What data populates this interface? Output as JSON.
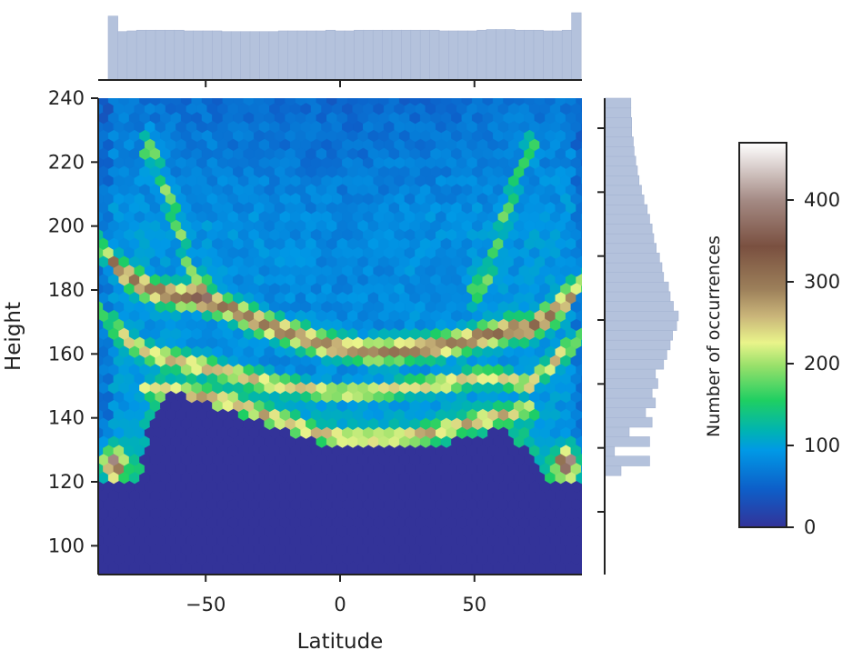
{
  "chart_data": {
    "type": "heatmap",
    "subtype": "hexbin joint plot with marginal histograms",
    "xlabel": "Latitude",
    "ylabel": "Height",
    "xlim": [
      -90,
      90
    ],
    "ylim": [
      91,
      240
    ],
    "x_ticks": [
      -50,
      0,
      50
    ],
    "x_tick_labels": [
      "−50",
      "0",
      "50"
    ],
    "y_ticks": [
      100,
      120,
      140,
      160,
      180,
      200,
      220,
      240
    ],
    "y_tick_labels": [
      "100",
      "120",
      "140",
      "160",
      "180",
      "200",
      "220",
      "240"
    ],
    "colorbar": {
      "label": "Number of occurrences",
      "range": [
        0,
        470
      ],
      "ticks": [
        0,
        100,
        200,
        300,
        400
      ],
      "tick_labels": [
        "0",
        "100",
        "200",
        "300",
        "400"
      ],
      "colormap": [
        [
          0,
          "#333399"
        ],
        [
          0.1,
          "#0d5fc9"
        ],
        [
          0.2,
          "#0099e6"
        ],
        [
          0.25,
          "#00b3b3"
        ],
        [
          0.33,
          "#1fcf62"
        ],
        [
          0.42,
          "#98e06a"
        ],
        [
          0.48,
          "#e9f48a"
        ],
        [
          0.55,
          "#c9b479"
        ],
        [
          0.62,
          "#9c7f5a"
        ],
        [
          0.73,
          "#7a5040"
        ],
        [
          0.85,
          "#a48a84"
        ],
        [
          1.0,
          "#ffffff"
        ]
      ]
    },
    "floor_boundary": {
      "latitude": [
        -90,
        -82,
        -75,
        -70,
        -65,
        -60,
        -50,
        -40,
        -30,
        -20,
        -10,
        0,
        10,
        20,
        30,
        40,
        50,
        60,
        65,
        70,
        75,
        82,
        90
      ],
      "height": [
        122,
        122,
        122,
        140,
        148,
        149,
        146,
        143,
        140,
        137,
        134,
        132,
        132,
        132,
        133,
        134,
        136,
        138,
        136,
        130,
        122,
        122,
        122
      ]
    },
    "density_bands": [
      {
        "latitude": [
          -90,
          -80,
          -70,
          -60,
          -55,
          -50,
          -40,
          -30,
          -20,
          -10,
          0,
          10,
          20,
          30,
          40,
          50,
          55,
          60,
          65,
          70,
          80,
          90
        ],
        "height": [
          194,
          185,
          180,
          178,
          178,
          177,
          174,
          170,
          167,
          164,
          162,
          161,
          161,
          162,
          163,
          165,
          166,
          167,
          168,
          168,
          173,
          183
        ],
        "peak": 0.46,
        "width": 3.5
      },
      {
        "latitude": [
          -90,
          -80,
          -70,
          -60,
          -50,
          -40,
          -30,
          -20,
          -10,
          0,
          10,
          20,
          30,
          40,
          50,
          60,
          65,
          70,
          80,
          90
        ],
        "height": [
          174,
          165,
          160,
          158,
          156,
          154,
          152,
          150,
          149,
          148,
          148,
          149,
          150,
          151,
          153,
          153,
          152,
          150,
          158,
          166
        ],
        "peak": 0.34,
        "width": 2.6
      },
      {
        "latitude": [
          -70,
          -60,
          -50,
          -40,
          -30,
          -20,
          -10,
          0,
          10,
          20,
          30,
          40,
          50,
          60,
          65,
          70
        ],
        "height": [
          149,
          148,
          147,
          145,
          142,
          139,
          136,
          134,
          134,
          134,
          135,
          137,
          139,
          141,
          142,
          143
        ],
        "peak": 0.3,
        "width": 2.2
      },
      {
        "latitude": [
          -70,
          -65,
          -60,
          -57,
          -55,
          -52
        ],
        "height": [
          225,
          212,
          200,
          190,
          184,
          180
        ],
        "peak": 0.22,
        "width": 4.5
      },
      {
        "latitude": [
          70,
          65,
          60,
          57,
          55,
          52
        ],
        "height": [
          225,
          212,
          200,
          190,
          184,
          180
        ],
        "peak": 0.2,
        "width": 4.5
      }
    ],
    "corner_peaks": [
      {
        "latitude": -85,
        "height": 126,
        "value": 0.65
      },
      {
        "latitude": 85,
        "height": 126,
        "value": 0.65
      }
    ],
    "marginal_x": {
      "bins": [
        -90,
        90
      ],
      "counts": [
        0.95,
        0.72,
        0.73,
        0.74,
        0.74,
        0.74,
        0.74,
        0.74,
        0.73,
        0.73,
        0.73,
        0.73,
        0.72,
        0.72,
        0.72,
        0.72,
        0.72,
        0.72,
        0.73,
        0.73,
        0.73,
        0.73,
        0.73,
        0.74,
        0.73,
        0.73,
        0.74,
        0.74,
        0.74,
        0.74,
        0.74,
        0.74,
        0.74,
        0.74,
        0.74,
        0.73,
        0.73,
        0.73,
        0.73,
        0.74,
        0.75,
        0.75,
        0.75,
        0.74,
        0.74,
        0.74,
        0.73,
        0.73,
        0.74,
        1.0
      ]
    },
    "marginal_y": {
      "bins": [
        91,
        240
      ],
      "counts": [
        0.2,
        0.55,
        0.12,
        0.55,
        0.3,
        0.58,
        0.5,
        0.62,
        0.58,
        0.65,
        0.62,
        0.72,
        0.76,
        0.8,
        0.83,
        0.88,
        0.9,
        0.84,
        0.8,
        0.78,
        0.72,
        0.7,
        0.67,
        0.63,
        0.6,
        0.58,
        0.55,
        0.52,
        0.48,
        0.45,
        0.42,
        0.4,
        0.38,
        0.36,
        0.35,
        0.33,
        0.33,
        0.32,
        0.32
      ],
      "from_height": 122
    },
    "grid": false,
    "legend": "colorbar on right"
  }
}
